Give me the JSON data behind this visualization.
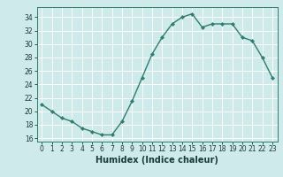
{
  "x": [
    0,
    1,
    2,
    3,
    4,
    5,
    6,
    7,
    8,
    9,
    10,
    11,
    12,
    13,
    14,
    15,
    16,
    17,
    18,
    19,
    20,
    21,
    22,
    23
  ],
  "y": [
    21,
    20,
    19,
    18.5,
    17.5,
    17,
    16.5,
    16.5,
    18.5,
    21.5,
    25,
    28.5,
    31,
    33,
    34,
    34.5,
    32.5,
    33,
    33,
    33,
    31,
    30.5,
    28,
    25
  ],
  "line_color": "#2e7d6e",
  "marker": "D",
  "marker_size": 2.2,
  "background_color": "#ceeaea",
  "grid_color": "#ffffff",
  "xlabel": "Humidex (Indice chaleur)",
  "xlim": [
    -0.5,
    23.5
  ],
  "ylim": [
    15.5,
    35.5
  ],
  "yticks": [
    16,
    18,
    20,
    22,
    24,
    26,
    28,
    30,
    32,
    34
  ],
  "xticks": [
    0,
    1,
    2,
    3,
    4,
    5,
    6,
    7,
    8,
    9,
    10,
    11,
    12,
    13,
    14,
    15,
    16,
    17,
    18,
    19,
    20,
    21,
    22,
    23
  ],
  "tick_label_fontsize": 5.5,
  "xlabel_fontsize": 7.0,
  "line_width": 1.0,
  "spine_color": "#2e7d6e"
}
